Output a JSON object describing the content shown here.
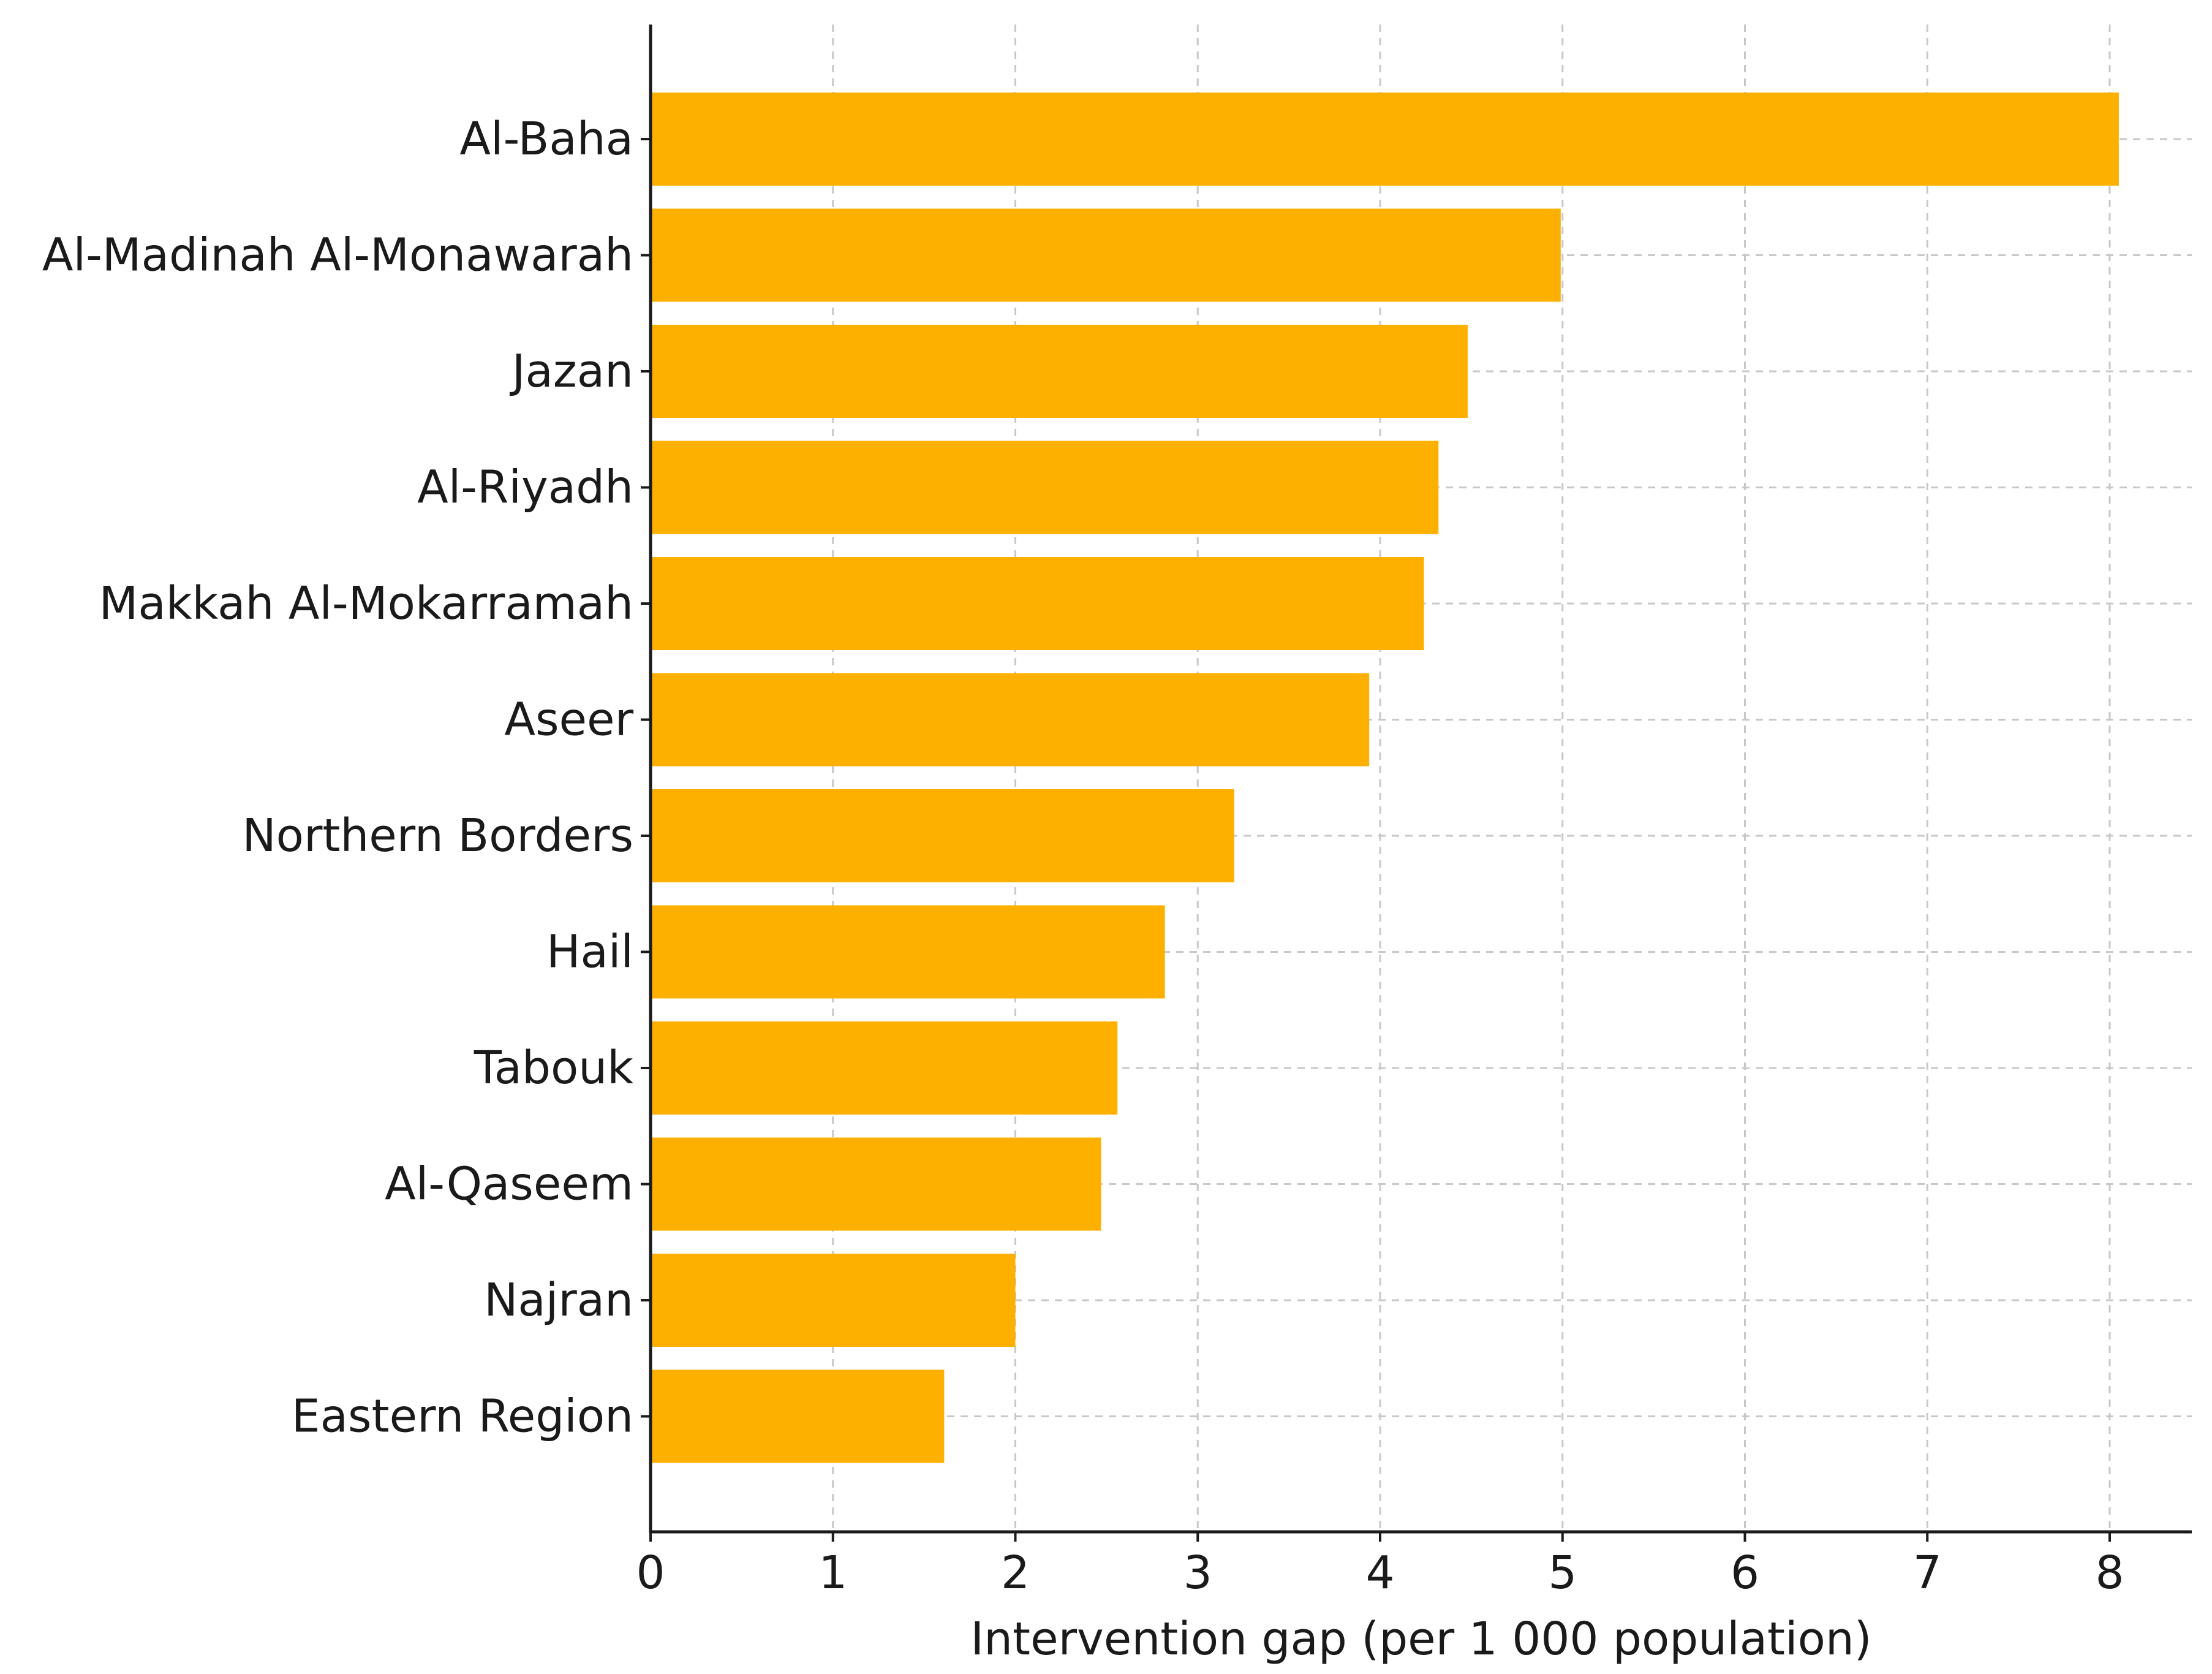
{
  "chart_data": {
    "type": "bar",
    "orientation": "horizontal",
    "title": "",
    "xlabel": "Intervention gap (per 1 000 population)",
    "ylabel": "",
    "categories": [
      "Al-Baha",
      "Al-Madinah Al-Monawarah",
      "Jazan",
      "Al-Riyadh",
      "Makkah Al-Mokarramah",
      "Aseer",
      "Northern Borders",
      "Hail",
      "Tabouk",
      "Al-Qaseem",
      "Najran",
      "Eastern Region"
    ],
    "values": [
      8.05,
      4.99,
      4.48,
      4.32,
      4.24,
      3.94,
      3.2,
      2.82,
      2.56,
      2.47,
      2.0,
      1.61
    ],
    "xlim": [
      0,
      8.45
    ],
    "xticks": [
      "0",
      "1",
      "2",
      "3",
      "4",
      "5",
      "6",
      "7",
      "8"
    ],
    "grid": true,
    "bar_color": "#FDB000",
    "grid_color": "#c8c8c8",
    "axis_color": "#1a1a1a"
  }
}
